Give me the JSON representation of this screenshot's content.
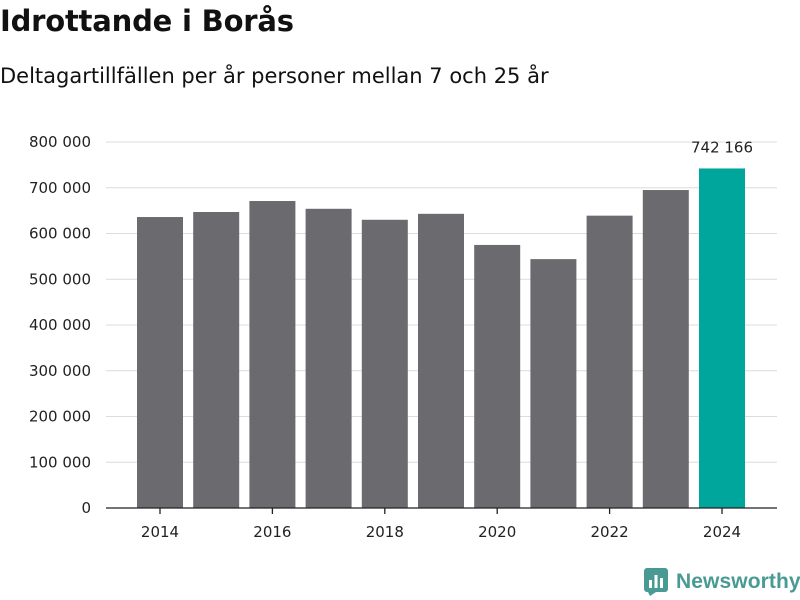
{
  "header": {
    "title": "Idrottande i Borås",
    "subtitle": "Deltagartillfällen per år personer mellan 7 och 25 år"
  },
  "brand": {
    "name": "Newsworthy",
    "icon": "newsworthy-logo-icon",
    "color": "#4a9a94"
  },
  "chart_data": {
    "type": "bar",
    "title": "Idrottande i Borås",
    "subtitle": "Deltagartillfällen per år personer mellan 7 och 25 år",
    "xlabel": "",
    "ylabel": "",
    "categories": [
      "2014",
      "2015",
      "2016",
      "2017",
      "2018",
      "2019",
      "2020",
      "2021",
      "2022",
      "2023",
      "2024"
    ],
    "values": [
      636000,
      647000,
      671000,
      654000,
      630000,
      643000,
      575000,
      544000,
      639000,
      695000,
      742166
    ],
    "ylim": [
      0,
      800000
    ],
    "yticks": [
      0,
      100000,
      200000,
      300000,
      400000,
      500000,
      600000,
      700000,
      800000
    ],
    "ytick_labels": [
      "0",
      "100 000",
      "200 000",
      "300 000",
      "400 000",
      "500 000",
      "600 000",
      "700 000",
      "800 000"
    ],
    "xtick_labels": [
      "2014",
      "2016",
      "2018",
      "2020",
      "2022",
      "2024"
    ],
    "xtick_positions": [
      "2014",
      "2016",
      "2018",
      "2020",
      "2022",
      "2024"
    ],
    "grid": true,
    "bar_color": "#6b6a6f",
    "highlight_color": "#00a69b",
    "highlight_category": "2024",
    "annotations": [
      {
        "category": "2024",
        "text": "742 166"
      }
    ]
  }
}
